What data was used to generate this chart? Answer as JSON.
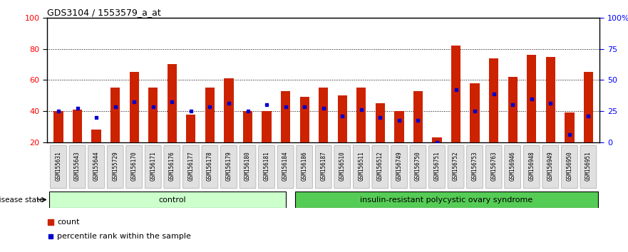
{
  "title": "GDS3104 / 1553579_a_at",
  "samples": [
    "GSM155631",
    "GSM155643",
    "GSM155644",
    "GSM155729",
    "GSM156170",
    "GSM156171",
    "GSM156176",
    "GSM156177",
    "GSM156178",
    "GSM156179",
    "GSM156180",
    "GSM156181",
    "GSM156184",
    "GSM156186",
    "GSM156187",
    "GSM156510",
    "GSM156511",
    "GSM156512",
    "GSM156749",
    "GSM156750",
    "GSM156751",
    "GSM156752",
    "GSM156753",
    "GSM156763",
    "GSM156946",
    "GSM156948",
    "GSM156949",
    "GSM156950",
    "GSM156951"
  ],
  "bar_heights": [
    40,
    41,
    28,
    55,
    65,
    55,
    70,
    38,
    55,
    61,
    40,
    40,
    53,
    49,
    55,
    50,
    55,
    45,
    40,
    53,
    23,
    82,
    58,
    74,
    62,
    76,
    75,
    39,
    65
  ],
  "blue_y": [
    40,
    42,
    36,
    43,
    46,
    43,
    46,
    40,
    43,
    45,
    40,
    44,
    43,
    43,
    42,
    37,
    41,
    36,
    34,
    34,
    20,
    54,
    40,
    51,
    44,
    48,
    45,
    25,
    37
  ],
  "bar_color": "#cc2200",
  "blue_color": "#0000cc",
  "control_count": 13,
  "control_label": "control",
  "disease_label": "insulin-resistant polycystic ovary syndrome",
  "ylim_left": [
    20,
    100
  ],
  "yticks_left": [
    20,
    40,
    60,
    80,
    100
  ],
  "ylim_right": [
    0,
    100
  ],
  "yticks_right": [
    0,
    25,
    50,
    75,
    100
  ],
  "ytick_labels_right": [
    "0",
    "25",
    "50",
    "75",
    "100%"
  ],
  "bg_color": "#ffffff",
  "plot_bg": "#ffffff",
  "control_bg": "#ccffcc",
  "disease_bg": "#55cc55",
  "bar_width": 0.5
}
